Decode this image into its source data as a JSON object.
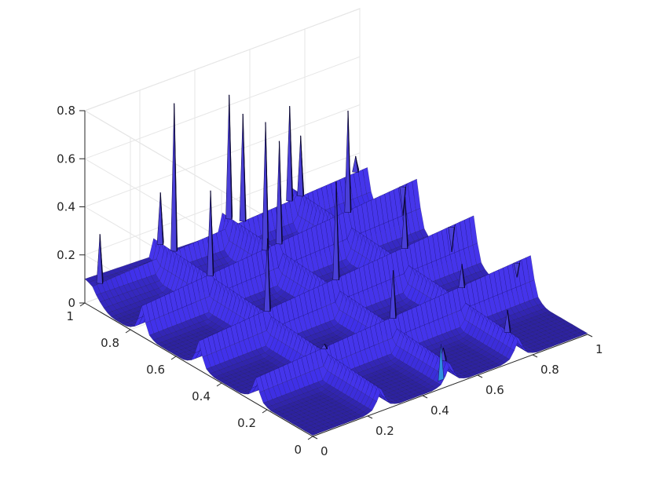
{
  "chart_data": {
    "type": "surface",
    "title": "",
    "xlabel": "",
    "ylabel": "",
    "zlabel": "",
    "xlim": [
      0,
      1
    ],
    "ylim": [
      0,
      1
    ],
    "zlim": [
      0,
      0.8
    ],
    "x_ticks": [
      "0",
      "0.2",
      "0.4",
      "0.6",
      "0.8",
      "1"
    ],
    "y_ticks": [
      "0",
      "0.2",
      "0.4",
      "0.6",
      "0.8",
      "1"
    ],
    "z_ticks": [
      "0",
      "0.2",
      "0.4",
      "0.6",
      "0.8"
    ],
    "grid": true,
    "colors": {
      "surface": "#2a1f8f",
      "edge": "#0d0840",
      "highlight": "#2f8fe0",
      "axis": "#262626",
      "grid": "#e6e6e6"
    },
    "ridges": [
      {
        "axis": "x",
        "at": 0.25,
        "height": 0.12
      },
      {
        "axis": "x",
        "at": 0.5,
        "height": 0.12
      },
      {
        "axis": "x",
        "at": 0.75,
        "height": 0.12
      },
      {
        "axis": "y",
        "at": 0.25,
        "height": 0.14
      },
      {
        "axis": "y",
        "at": 0.5,
        "height": 0.16
      },
      {
        "axis": "y",
        "at": 0.75,
        "height": 0.17
      },
      {
        "axis": "y",
        "at": 0.97,
        "height": 0.12
      }
    ],
    "spikes": [
      {
        "x": 0.03,
        "y": 0.97,
        "z": 0.29
      },
      {
        "x": 0.25,
        "y": 0.97,
        "z": 0.37
      },
      {
        "x": 0.3,
        "y": 0.97,
        "z": 0.72
      },
      {
        "x": 0.5,
        "y": 0.97,
        "z": 0.67
      },
      {
        "x": 0.55,
        "y": 0.97,
        "z": 0.57
      },
      {
        "x": 0.72,
        "y": 0.97,
        "z": 0.53
      },
      {
        "x": 0.76,
        "y": 0.97,
        "z": 0.39
      },
      {
        "x": 0.96,
        "y": 0.97,
        "z": 0.22
      },
      {
        "x": 0.25,
        "y": 0.75,
        "z": 0.5
      },
      {
        "x": 0.45,
        "y": 0.75,
        "z": 0.7
      },
      {
        "x": 0.5,
        "y": 0.75,
        "z": 0.6
      },
      {
        "x": 0.75,
        "y": 0.75,
        "z": 0.62
      },
      {
        "x": 0.5,
        "y": 0.5,
        "z": 0.57
      },
      {
        "x": 0.75,
        "y": 0.5,
        "z": 0.4
      },
      {
        "x": 0.25,
        "y": 0.5,
        "z": 0.44
      },
      {
        "x": 0.25,
        "y": 0.25,
        "z": 0.14
      },
      {
        "x": 0.5,
        "y": 0.25,
        "z": 0.34
      },
      {
        "x": 0.75,
        "y": 0.25,
        "z": 0.26
      },
      {
        "x": 0.75,
        "y": 0.05,
        "z": 0.18
      },
      {
        "x": 0.95,
        "y": 0.25,
        "z": 0.12
      },
      {
        "x": 0.5,
        "y": 0.03,
        "z": 0.14
      },
      {
        "x": 0.92,
        "y": 0.5,
        "z": 0.1
      },
      {
        "x": 0.95,
        "y": 0.75,
        "z": 0.1
      }
    ]
  }
}
